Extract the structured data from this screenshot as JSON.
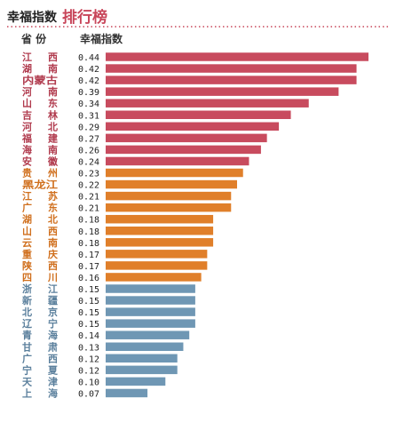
{
  "header": {
    "title": "幸福指数",
    "title_accent": "排行榜",
    "accent_color": "#c8465a",
    "col_province": "省  份",
    "col_index": "幸福指数"
  },
  "palette": {
    "tier_1": "#c84b5e",
    "tier_2": "#e07f2a",
    "tier_3": "#6f97b4",
    "label_tier_1": "#b03a4d",
    "label_tier_2": "#d06f1d",
    "label_tier_3": "#5a7f9c"
  },
  "chart_data": {
    "type": "bar",
    "orientation": "horizontal",
    "title": "幸福指数 排行榜",
    "xlim": [
      0,
      0.44
    ],
    "categories": [
      "江西",
      "湖南",
      "内蒙古",
      "河南",
      "山东",
      "吉林",
      "河北",
      "福建",
      "海南",
      "安徽",
      "贵州",
      "黑龙江",
      "江苏",
      "广东",
      "湖北",
      "山西",
      "云南",
      "重庆",
      "陕西",
      "四川",
      "浙江",
      "新疆",
      "北京",
      "辽宁",
      "青海",
      "甘肃",
      "广西",
      "宁夏",
      "天津",
      "上海"
    ],
    "values": [
      0.44,
      0.42,
      0.42,
      0.39,
      0.34,
      0.31,
      0.29,
      0.27,
      0.26,
      0.24,
      0.23,
      0.22,
      0.21,
      0.21,
      0.18,
      0.18,
      0.18,
      0.17,
      0.17,
      0.16,
      0.15,
      0.15,
      0.15,
      0.15,
      0.14,
      0.13,
      0.12,
      0.12,
      0.1,
      0.07
    ],
    "value_labels": [
      "0.44",
      "0.42",
      "0.42",
      "0.39",
      "0.34",
      "0.31",
      "0.29",
      "0.27",
      "0.26",
      "0.24",
      "0.23",
      "0.22",
      "0.21",
      "0.21",
      "0.18",
      "0.18",
      "0.18",
      "0.17",
      "0.17",
      "0.16",
      "0.15",
      "0.15",
      "0.15",
      "0.15",
      "0.14",
      "0.13",
      "0.12",
      "0.12",
      "0.10",
      "0.07"
    ],
    "tiers": [
      1,
      1,
      1,
      1,
      1,
      1,
      1,
      1,
      1,
      1,
      2,
      2,
      2,
      2,
      2,
      2,
      2,
      2,
      2,
      2,
      3,
      3,
      3,
      3,
      3,
      3,
      3,
      3,
      3,
      3
    ],
    "grid": false,
    "legend": "none"
  }
}
